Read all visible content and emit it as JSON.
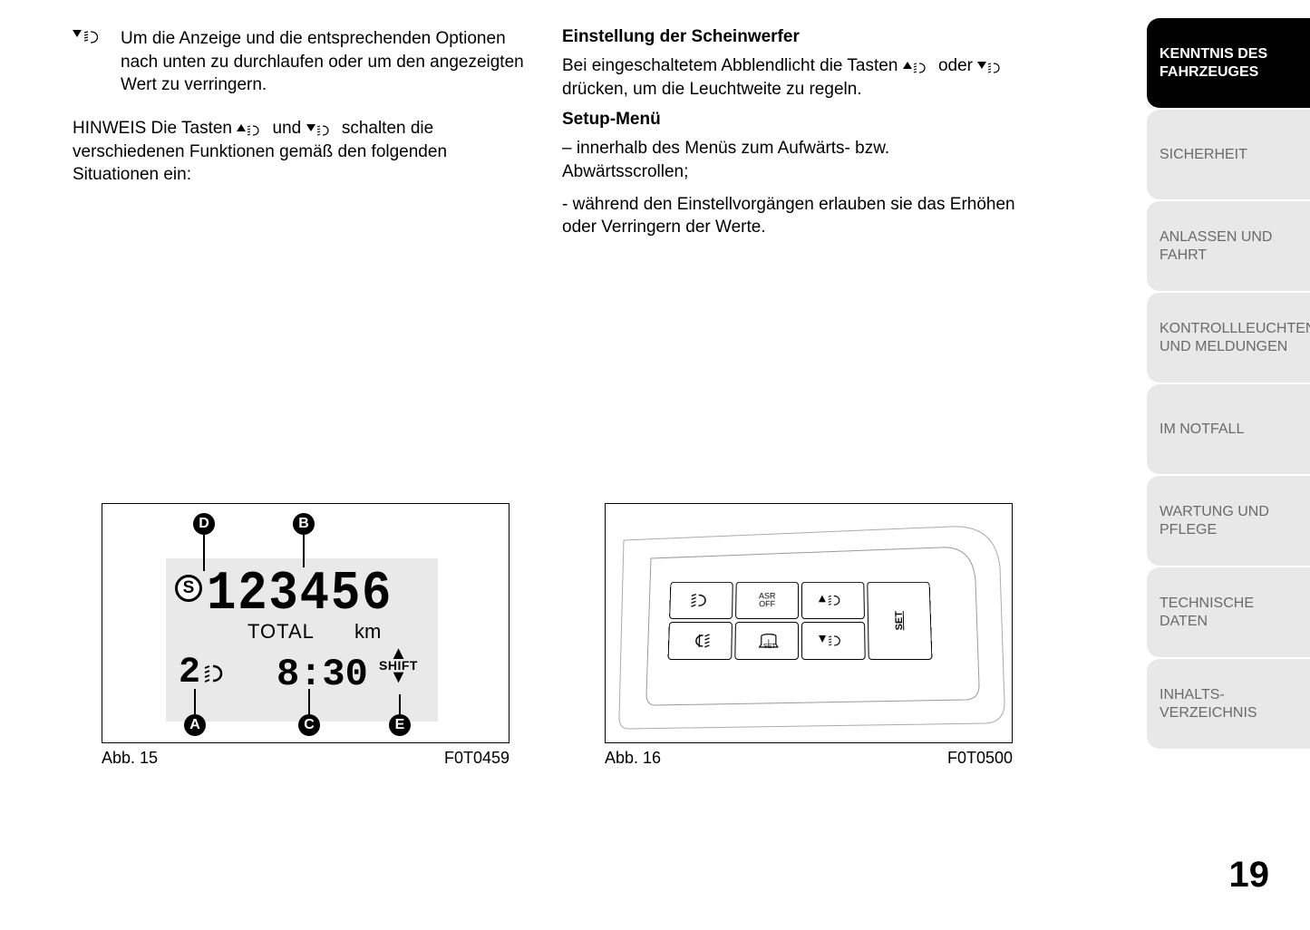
{
  "left_column": {
    "bullet_text": "Um die Anzeige und die entsprechenden Optionen nach unten zu durchlaufen oder um den angezeigten Wert zu verringern.",
    "hint_prefix": "HINWEIS Die Tasten ",
    "hint_mid": " und ",
    "hint_suffix": " schalten die verschiedenen Funktionen gemäß den folgenden Situationen ein:"
  },
  "right_column": {
    "h1": "Einstellung der Scheinwerfer",
    "p1a": "Bei eingeschaltetem Abblendlicht die Tasten ",
    "p1b": " oder ",
    "p1c": " drücken, um die Leuchtweite zu regeln.",
    "h2": "Setup-Menü",
    "p2": "– innerhalb des Menüs zum Aufwärts- bzw. Abwärtsscrollen;",
    "p3": "- während den Einstellvorgängen erlauben sie das Erhöhen oder Verringern der Werte."
  },
  "sidebar": {
    "tabs": [
      {
        "label": "KENNTNIS DES FAHRZEUGES",
        "active": true
      },
      {
        "label": "SICHERHEIT",
        "active": false
      },
      {
        "label": "ANLASSEN UND FAHRT",
        "active": false
      },
      {
        "label": "KONTROLLLEUCHTEN UND MELDUNGEN",
        "active": false
      },
      {
        "label": "IM NOTFALL",
        "active": false
      },
      {
        "label": "WARTUNG UND PFLEGE",
        "active": false
      },
      {
        "label": "TECHNISCHE DATEN",
        "active": false
      },
      {
        "label": "INHALTS-VERZEICHNIS",
        "active": false
      }
    ]
  },
  "figure15": {
    "caption_left": "Abb. 15",
    "caption_right": "F0T0459",
    "odometer": "123456",
    "total_label": "TOTAL",
    "km_label": "km",
    "light_level": "2",
    "time": "8:30",
    "shift_label": "SHIFT",
    "labels": {
      "A": "A",
      "B": "B",
      "C": "C",
      "D": "D",
      "E": "E",
      "S": "S"
    }
  },
  "figure16": {
    "caption_left": "Abb. 16",
    "caption_right": "F0T0500",
    "buttons": {
      "asr": "ASR\nOFF",
      "tpms": "SET",
      "set": "SET"
    }
  },
  "page_number": "19",
  "colors": {
    "lcd_bg": "#e9e9e9",
    "tab_inactive_bg": "#e8e8e8",
    "tab_inactive_fg": "#6a6a6a",
    "tab_active_bg": "#000000",
    "tab_active_fg": "#ffffff"
  }
}
